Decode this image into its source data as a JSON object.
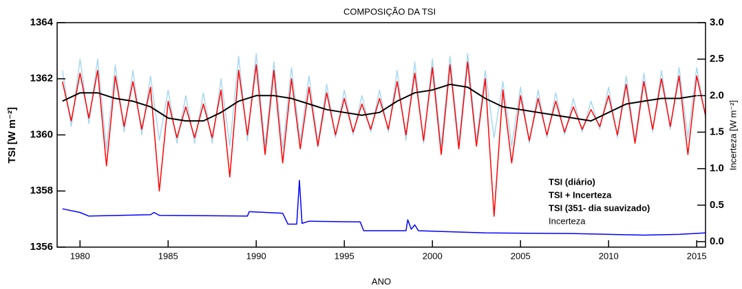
{
  "chart_data": {
    "type": "line",
    "title": "COMPOSIÇÃO DA TSI",
    "x_label": "ANO",
    "y_label": "TSI [W m⁻²]",
    "y2_label": "Incerteza [W m⁻²]",
    "xlim": [
      1978.7,
      2015.5
    ],
    "xticks": [
      1980,
      1985,
      1990,
      1995,
      2000,
      2005,
      2010,
      2015
    ],
    "ylim": [
      1356,
      1364
    ],
    "yticks": [
      1356,
      1358,
      1360,
      1362,
      1364
    ],
    "y2lim": [
      -0.075,
      3.0
    ],
    "y2ticks": [
      {
        "value": 0,
        "label": "0.0"
      },
      {
        "value": 0.5,
        "label": "0.5"
      },
      {
        "value": 1,
        "label": "1.0"
      },
      {
        "value": 1.5,
        "label": "1.5"
      },
      {
        "value": 2,
        "label": "2.0"
      },
      {
        "value": 2.5,
        "label": "2.5"
      },
      {
        "value": 3,
        "label": "3.0"
      }
    ],
    "legend_position": "lower right",
    "series": [
      {
        "name": "TSI + Incerteza",
        "color": "#a8d8f0",
        "x": [
          1979.0,
          1979.5,
          1980.0,
          1980.5,
          1981.0,
          1981.5,
          1982.0,
          1982.5,
          1983.0,
          1983.5,
          1984.0,
          1984.5,
          1985.0,
          1985.5,
          1986.0,
          1986.5,
          1987.0,
          1987.5,
          1988.0,
          1988.5,
          1989.0,
          1989.5,
          1990.0,
          1990.5,
          1991.0,
          1991.5,
          1992.0,
          1992.5,
          1993.0,
          1993.5,
          1994.0,
          1994.5,
          1995.0,
          1995.5,
          1996.0,
          1996.5,
          1997.0,
          1997.5,
          1998.0,
          1998.5,
          1999.0,
          1999.5,
          2000.0,
          2000.5,
          2001.0,
          2001.5,
          2002.0,
          2002.5,
          2003.0,
          2003.5,
          2004.0,
          2004.5,
          2005.0,
          2005.5,
          2006.0,
          2006.5,
          2007.0,
          2007.5,
          2008.0,
          2008.5,
          2009.0,
          2009.5,
          2010.0,
          2010.5,
          2011.0,
          2011.5,
          2012.0,
          2012.5,
          2013.0,
          2013.5,
          2014.0,
          2014.5,
          2015.0,
          2015.5
        ],
        "values": [
          1362.3,
          1360.3,
          1362.7,
          1360.4,
          1362.7,
          1359.5,
          1362.5,
          1360.1,
          1362.3,
          1360.0,
          1362.1,
          1359.8,
          1361.6,
          1359.7,
          1361.4,
          1359.7,
          1361.5,
          1359.7,
          1362.0,
          1359.6,
          1362.8,
          1359.8,
          1362.9,
          1359.6,
          1362.6,
          1359.5,
          1362.4,
          1359.8,
          1362.1,
          1359.7,
          1361.8,
          1359.9,
          1361.6,
          1360.0,
          1361.4,
          1360.1,
          1361.6,
          1360.1,
          1362.3,
          1359.8,
          1362.6,
          1359.7,
          1362.7,
          1359.6,
          1362.8,
          1359.7,
          1362.9,
          1359.8,
          1362.3,
          1359.9,
          1361.9,
          1359.6,
          1361.7,
          1359.7,
          1361.6,
          1359.9,
          1361.5,
          1360.0,
          1361.3,
          1360.1,
          1361.2,
          1360.2,
          1361.7,
          1359.9,
          1362.1,
          1359.8,
          1362.2,
          1360.1,
          1362.3,
          1360.2,
          1362.4,
          1359.9,
          1362.4,
          1360.6
        ]
      },
      {
        "name": "TSI (diário)",
        "color": "#ff0000",
        "x": [
          1979.0,
          1979.5,
          1980.0,
          1980.5,
          1981.0,
          1981.5,
          1982.0,
          1982.5,
          1983.0,
          1983.5,
          1984.0,
          1984.5,
          1985.0,
          1985.5,
          1986.0,
          1986.5,
          1987.0,
          1987.5,
          1988.0,
          1988.5,
          1989.0,
          1989.5,
          1990.0,
          1990.5,
          1991.0,
          1991.5,
          1992.0,
          1992.5,
          1993.0,
          1993.5,
          1994.0,
          1994.5,
          1995.0,
          1995.5,
          1996.0,
          1996.5,
          1997.0,
          1997.5,
          1998.0,
          1998.5,
          1999.0,
          1999.5,
          2000.0,
          2000.5,
          2001.0,
          2001.5,
          2002.0,
          2002.5,
          2003.0,
          2003.5,
          2004.0,
          2004.5,
          2005.0,
          2005.5,
          2006.0,
          2006.5,
          2007.0,
          2007.5,
          2008.0,
          2008.5,
          2009.0,
          2009.5,
          2010.0,
          2010.5,
          2011.0,
          2011.5,
          2012.0,
          2012.5,
          2013.0,
          2013.5,
          2014.0,
          2014.5,
          2015.0,
          2015.5
        ],
        "values": [
          1361.9,
          1360.5,
          1362.2,
          1360.6,
          1362.3,
          1358.9,
          1362.1,
          1360.3,
          1361.9,
          1360.2,
          1361.7,
          1358.0,
          1361.2,
          1359.9,
          1361.0,
          1359.9,
          1361.1,
          1359.9,
          1361.6,
          1358.5,
          1362.3,
          1360.0,
          1362.5,
          1359.3,
          1362.3,
          1359.0,
          1362.0,
          1359.5,
          1361.7,
          1359.6,
          1361.5,
          1360.0,
          1361.3,
          1360.1,
          1361.1,
          1360.2,
          1361.3,
          1360.2,
          1361.9,
          1360.0,
          1362.2,
          1359.8,
          1362.4,
          1359.3,
          1362.5,
          1359.5,
          1362.6,
          1359.6,
          1362.0,
          1357.1,
          1361.6,
          1359.0,
          1361.4,
          1359.8,
          1361.3,
          1360.0,
          1361.2,
          1360.1,
          1361.0,
          1360.2,
          1360.9,
          1360.3,
          1361.4,
          1360.0,
          1361.8,
          1359.7,
          1361.9,
          1360.2,
          1362.0,
          1360.3,
          1362.1,
          1359.3,
          1362.1,
          1360.7
        ]
      },
      {
        "name": "TSI (351- dia suavizado)",
        "color": "#000000",
        "x": [
          1979,
          1980,
          1981,
          1982,
          1983,
          1984,
          1985,
          1986,
          1987,
          1988,
          1989,
          1990,
          1991,
          1992,
          1993,
          1994,
          1995,
          1996,
          1997,
          1998,
          1999,
          2000,
          2001,
          2002,
          2003,
          2004,
          2005,
          2006,
          2007,
          2008,
          2009,
          2010,
          2011,
          2012,
          2013,
          2014,
          2015
        ],
        "values": [
          1361.2,
          1361.5,
          1361.5,
          1361.3,
          1361.2,
          1361.0,
          1360.6,
          1360.5,
          1360.5,
          1360.8,
          1361.2,
          1361.4,
          1361.4,
          1361.3,
          1361.1,
          1360.9,
          1360.8,
          1360.7,
          1360.8,
          1361.2,
          1361.5,
          1361.6,
          1361.8,
          1361.7,
          1361.3,
          1361.0,
          1360.9,
          1360.8,
          1360.7,
          1360.6,
          1360.5,
          1360.8,
          1361.1,
          1361.2,
          1361.3,
          1361.3,
          1361.4
        ]
      },
      {
        "name": "Incerteza",
        "color": "#0000ff",
        "axis": "y2",
        "x": [
          1979.0,
          1980.0,
          1980.5,
          1984.0,
          1984.2,
          1984.5,
          1989.5,
          1989.6,
          1991.5,
          1991.8,
          1992.3,
          1992.45,
          1992.6,
          1993.0,
          1995.9,
          1996.1,
          1998.5,
          1998.6,
          1998.8,
          1999.0,
          1999.2,
          2003.0,
          2008.0,
          2012.0,
          2014.0,
          2015.5
        ],
        "values": [
          0.45,
          0.4,
          0.35,
          0.37,
          0.4,
          0.36,
          0.35,
          0.41,
          0.39,
          0.24,
          0.24,
          0.84,
          0.25,
          0.28,
          0.27,
          0.15,
          0.15,
          0.3,
          0.17,
          0.23,
          0.15,
          0.12,
          0.11,
          0.09,
          0.1,
          0.12
        ]
      }
    ]
  }
}
